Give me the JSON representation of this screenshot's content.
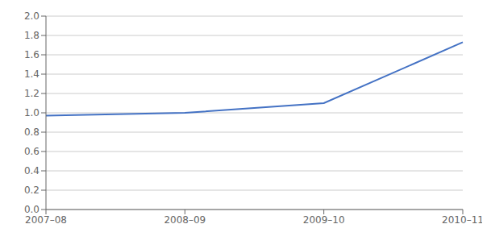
{
  "chart_data": {
    "type": "line",
    "categories": [
      "2007–08",
      "2008–09",
      "2009–10",
      "2010–11"
    ],
    "values": [
      0.97,
      1.0,
      1.1,
      1.73
    ],
    "color": "#4472c4",
    "ylim": [
      0.0,
      2.0
    ],
    "yticks": [
      {
        "value": 0.0,
        "label": "0.0"
      },
      0.2,
      0.4,
      0.6,
      0.8,
      {
        "value": 1.0,
        "label": "1.0"
      },
      1.2,
      1.4,
      1.6,
      1.8,
      {
        "value": 2.0,
        "label": "2.0"
      }
    ],
    "grid": true
  }
}
